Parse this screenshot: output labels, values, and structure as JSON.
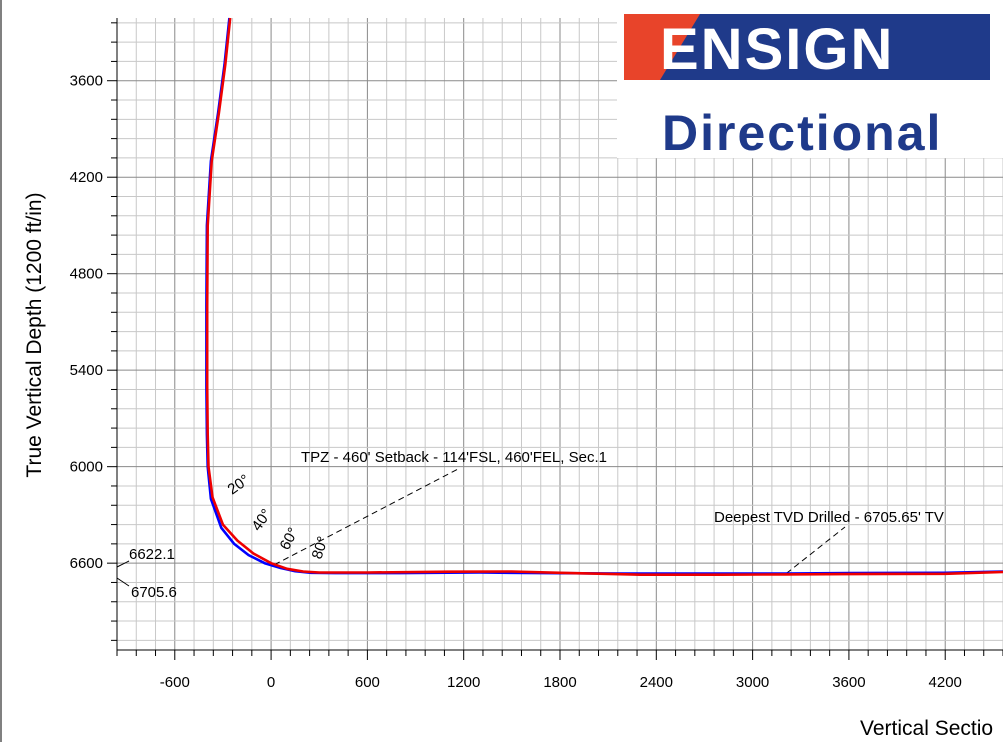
{
  "logo": {
    "top_text": "ENSIGN",
    "bottom_text": "Directional",
    "colors": {
      "red": "#e8442a",
      "blue": "#1f3a8a",
      "white": "#ffffff"
    }
  },
  "chart_data": {
    "type": "line",
    "ylabel": "True Vertical Depth (1200 ft/in)",
    "xlabel": "Vertical Sectio",
    "x_tick_labels": [
      "-600",
      "0",
      "600",
      "1200",
      "1800",
      "2400",
      "3000",
      "3600",
      "4200"
    ],
    "y_tick_labels": [
      "3600",
      "4200",
      "4800",
      "5400",
      "6000",
      "6600"
    ],
    "xlim": [
      -960,
      4560
    ],
    "ylim": [
      3210,
      7140
    ],
    "y_inverted": true,
    "grid": true,
    "series": [
      {
        "color": "#0000ff",
        "points": [
          [
            -260,
            3210
          ],
          [
            -290,
            3500
          ],
          [
            -330,
            3800
          ],
          [
            -375,
            4100
          ],
          [
            -400,
            4500
          ],
          [
            -403,
            5000
          ],
          [
            -403,
            5500
          ],
          [
            -400,
            5800
          ],
          [
            -395,
            6000
          ],
          [
            -375,
            6200
          ],
          [
            -310,
            6380
          ],
          [
            -230,
            6480
          ],
          [
            -140,
            6550
          ],
          [
            -40,
            6600
          ],
          [
            60,
            6630
          ],
          [
            150,
            6650
          ],
          [
            250,
            6660
          ],
          [
            400,
            6662
          ],
          [
            800,
            6662
          ],
          [
            1300,
            6658
          ],
          [
            1700,
            6662
          ],
          [
            2200,
            6665
          ],
          [
            2700,
            6664
          ],
          [
            3200,
            6664
          ],
          [
            3600,
            6662
          ],
          [
            4200,
            6660
          ],
          [
            4560,
            6652
          ]
        ]
      },
      {
        "color": "#ee0000",
        "points": [
          [
            -255,
            3210
          ],
          [
            -285,
            3500
          ],
          [
            -325,
            3800
          ],
          [
            -370,
            4100
          ],
          [
            -395,
            4500
          ],
          [
            -398,
            5000
          ],
          [
            -398,
            5500
          ],
          [
            -395,
            5800
          ],
          [
            -390,
            6000
          ],
          [
            -365,
            6190
          ],
          [
            -300,
            6360
          ],
          [
            -210,
            6460
          ],
          [
            -110,
            6540
          ],
          [
            0,
            6600
          ],
          [
            100,
            6635
          ],
          [
            200,
            6652
          ],
          [
            300,
            6658
          ],
          [
            600,
            6658
          ],
          [
            1100,
            6653
          ],
          [
            1500,
            6652
          ],
          [
            1800,
            6660
          ],
          [
            2300,
            6672
          ],
          [
            2800,
            6672
          ],
          [
            3200,
            6670
          ],
          [
            3600,
            6668
          ],
          [
            4200,
            6666
          ],
          [
            4560,
            6655
          ]
        ]
      }
    ],
    "annotations": {
      "tpz": "TPZ - 460' Setback - 114'FSL, 460'FEL, Sec.1",
      "deepest": "Deepest TVD Drilled - 6705.65' TV",
      "left_top": "6622.1",
      "left_bottom": "6705.6",
      "inc_20": "20°",
      "inc_40": "40°",
      "inc_60": "60°",
      "inc_80": "80°"
    }
  }
}
